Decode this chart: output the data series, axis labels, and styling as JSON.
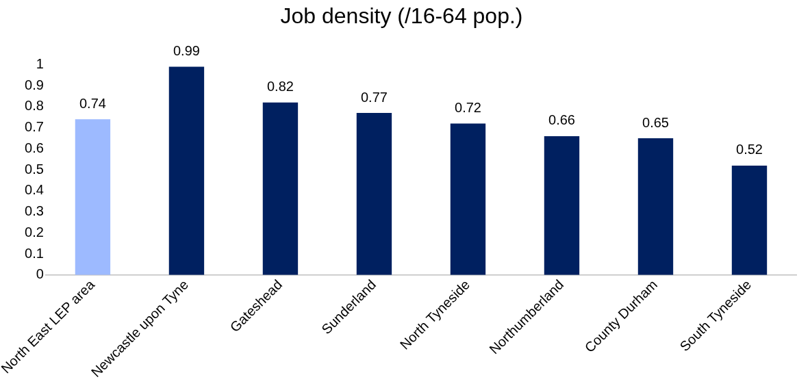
{
  "chart_data": {
    "type": "bar",
    "title": "Job density (/16-64 pop.)",
    "categories": [
      "North East LEP area",
      "Newcastle upon Tyne",
      "Gateshead",
      "Sunderland",
      "North Tyneside",
      "Northumberland",
      "County Durham",
      "South Tyneside"
    ],
    "values": [
      0.74,
      0.99,
      0.82,
      0.77,
      0.72,
      0.66,
      0.65,
      0.52
    ],
    "colors": [
      "#9dbaff",
      "#002060",
      "#002060",
      "#002060",
      "#002060",
      "#002060",
      "#002060",
      "#002060"
    ],
    "ylim": [
      0,
      1
    ],
    "yticks": [
      0,
      0.1,
      0.2,
      0.3,
      0.4,
      0.5,
      0.6,
      0.7,
      0.8,
      0.9,
      1
    ],
    "data_labels": true,
    "grid": false,
    "legend": false
  }
}
